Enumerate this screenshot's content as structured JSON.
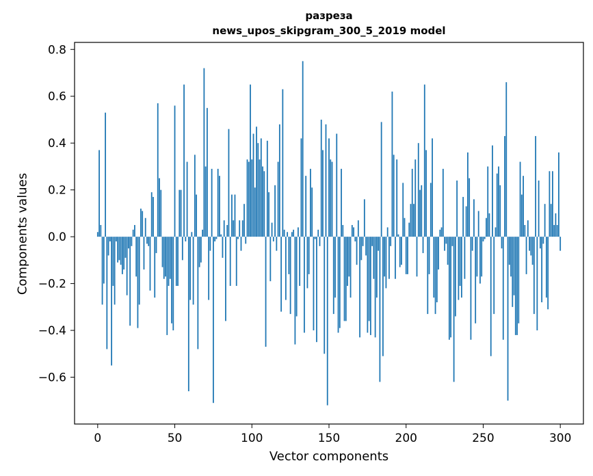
{
  "chart_data": {
    "type": "bar",
    "title_line1": "разреза",
    "title_line2": "news_upos_skipgram_300_5_2019 model",
    "xlabel": "Vector components",
    "ylabel": "Components values",
    "xlim": [
      -15,
      315
    ],
    "ylim": [
      -0.8,
      0.83
    ],
    "x_ticks": [
      0,
      50,
      100,
      150,
      200,
      250,
      300
    ],
    "y_ticks": [
      -0.6,
      -0.4,
      -0.2,
      0.0,
      0.2,
      0.4,
      0.6,
      0.8
    ],
    "y_tick_labels": [
      "−0.6",
      "−0.4",
      "−0.2",
      "0.0",
      "0.2",
      "0.4",
      "0.6",
      "0.8"
    ],
    "bar_color": "#1f77b4",
    "grid": false,
    "values": [
      0.02,
      0.37,
      0.05,
      -0.29,
      -0.2,
      0.53,
      -0.48,
      -0.08,
      -0.02,
      -0.55,
      -0.21,
      -0.29,
      -0.02,
      -0.11,
      -0.1,
      -0.12,
      -0.16,
      -0.14,
      -0.09,
      -0.25,
      -0.05,
      -0.38,
      -0.04,
      0.03,
      0.05,
      -0.17,
      -0.39,
      -0.29,
      0.12,
      0.11,
      -0.14,
      0.08,
      -0.03,
      -0.04,
      -0.23,
      0.19,
      0.17,
      -0.26,
      -0.07,
      0.57,
      0.25,
      0.2,
      -0.13,
      -0.18,
      -0.17,
      -0.42,
      -0.21,
      -0.18,
      -0.37,
      -0.4,
      0.56,
      -0.21,
      -0.21,
      0.2,
      0.2,
      -0.1,
      0.65,
      -0.02,
      0.32,
      -0.66,
      -0.27,
      0.02,
      -0.29,
      0.35,
      0.18,
      -0.48,
      -0.13,
      -0.11,
      0.03,
      0.72,
      0.3,
      0.55,
      -0.27,
      -0.06,
      0.29,
      -0.71,
      -0.02,
      -0.01,
      0.29,
      0.26,
      0.01,
      -0.09,
      0.07,
      -0.36,
      0.05,
      0.46,
      -0.21,
      0.18,
      0.07,
      0.18,
      -0.21,
      -0.01,
      0.07,
      -0.06,
      0.07,
      0.14,
      -0.03,
      0.33,
      0.32,
      0.65,
      0.33,
      0.44,
      0.21,
      0.47,
      0.4,
      0.33,
      0.42,
      0.3,
      0.28,
      -0.47,
      0.41,
      0.19,
      -0.19,
      0.06,
      -0.02,
      0.22,
      -0.06,
      0.32,
      0.48,
      -0.32,
      0.63,
      0.03,
      -0.27,
      0.02,
      -0.16,
      -0.33,
      0.02,
      0.03,
      -0.46,
      -0.34,
      0.04,
      -0.21,
      0.42,
      0.75,
      -0.41,
      0.26,
      -0.22,
      -0.16,
      0.29,
      0.21,
      -0.4,
      -0.01,
      -0.45,
      0.03,
      -0.04,
      0.5,
      0.37,
      -0.5,
      0.48,
      -0.72,
      0.42,
      0.33,
      0.32,
      -0.33,
      -0.26,
      0.44,
      -0.41,
      -0.39,
      0.29,
      0.05,
      -0.36,
      -0.36,
      -0.21,
      -0.17,
      -0.26,
      0.05,
      0.04,
      -0.02,
      -0.12,
      0.07,
      -0.43,
      -0.1,
      -0.04,
      0.16,
      -0.08,
      -0.41,
      -0.36,
      -0.42,
      -0.04,
      -0.18,
      -0.43,
      -0.26,
      -0.06,
      -0.62,
      0.49,
      -0.51,
      -0.17,
      -0.22,
      0.04,
      -0.18,
      -0.04,
      0.62,
      0.35,
      -0.18,
      0.33,
      0.01,
      -0.13,
      -0.12,
      0.23,
      0.08,
      -0.16,
      -0.16,
      0.06,
      0.14,
      0.29,
      0.14,
      0.33,
      -0.17,
      0.4,
      0.2,
      0.22,
      -0.07,
      0.65,
      0.37,
      -0.33,
      -0.16,
      0.23,
      0.42,
      -0.26,
      -0.33,
      -0.28,
      -0.14,
      0.03,
      0.04,
      0.29,
      -0.06,
      -0.03,
      -0.12,
      -0.44,
      -0.43,
      -0.04,
      -0.62,
      -0.34,
      0.24,
      -0.27,
      -0.21,
      -0.26,
      0.17,
      -0.18,
      0.13,
      0.36,
      0.25,
      -0.44,
      -0.06,
      0.16,
      -0.37,
      -0.17,
      0.11,
      -0.2,
      -0.17,
      -0.02,
      -0.01,
      0.08,
      0.3,
      0.1,
      -0.51,
      0.39,
      -0.33,
      0.04,
      0.27,
      0.3,
      0.22,
      -0.05,
      -0.44,
      0.43,
      0.66,
      -0.7,
      -0.12,
      -0.17,
      -0.3,
      -0.25,
      -0.42,
      -0.42,
      -0.37,
      0.32,
      0.18,
      0.26,
      0.05,
      -0.16,
      0.07,
      -0.06,
      -0.08,
      -0.12,
      -0.33,
      0.43,
      -0.4,
      0.24,
      -0.05,
      -0.28,
      -0.03,
      0.14,
      -0.26,
      -0.31,
      0.28,
      0.14,
      0.28,
      0.05,
      0.1,
      0.05,
      0.36,
      -0.06
    ]
  }
}
